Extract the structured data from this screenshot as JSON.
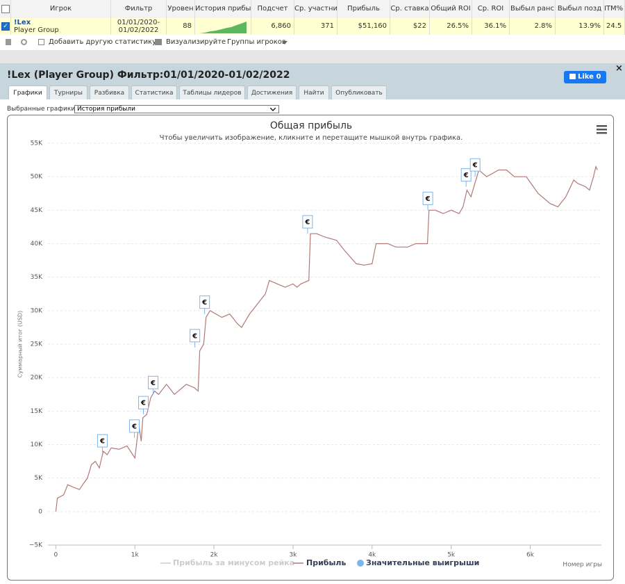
{
  "table": {
    "columns": [
      "Игрок",
      "Фильтр",
      "Уровен",
      "История прибы",
      "Подсчет",
      "Ср. участни",
      "Прибыль",
      "Ср. ставка",
      "Общий ROI",
      "Ср. ROI",
      "Выбыл ранс",
      "Выбыл позд",
      "ITM%"
    ],
    "row": {
      "player": "!Lex",
      "group": "Player Group",
      "filter": "01/01/2020-01/02/2022",
      "cells": [
        "88",
        "6,860",
        "371",
        "$51,160",
        "$22",
        "26.5%",
        "36.1%",
        "2.8%",
        "13.9%",
        "24.5"
      ]
    }
  },
  "toolbar": [
    "Добавить другую статистику",
    "Визуализируйте",
    "Группы игроков"
  ],
  "panel": {
    "title": "!Lex (Player Group) Фильтр:01/01/2020-01/02/2022",
    "like": "Like",
    "like_count": "0",
    "tabs": [
      "Графики",
      "Турниры",
      "Разбивка",
      "Статистика",
      "Таблицы лидеров",
      "Достижения",
      "Найти",
      "Опубликовать"
    ],
    "selector_label": "Выбранные графики:",
    "selector_value": "История прибыли"
  },
  "chart_data": {
    "type": "line",
    "title": "Общая прибыль",
    "subtitle": "Чтобы увеличить изображение, кликните и перетащите мышкой внутрь графика.",
    "y_label": "Суммарный итог (USD)",
    "x_label": "Номер игры",
    "flag_label": "€",
    "xlim": [
      -100,
      6900
    ],
    "ylim": [
      -5000,
      55000
    ],
    "xticks": [
      0,
      {
        "value": 1000,
        "label": "1k"
      },
      {
        "value": 2000,
        "label": "2k"
      },
      {
        "value": 3000,
        "label": "3k"
      },
      {
        "value": 4000,
        "label": "4k"
      },
      {
        "value": 5000,
        "label": "5k"
      },
      {
        "value": 6000,
        "label": "6k"
      }
    ],
    "yticks": [
      {
        "value": -5000,
        "label": "−5K"
      },
      0,
      {
        "value": 5000,
        "label": "5K"
      },
      {
        "value": 10000,
        "label": "10K"
      },
      {
        "value": 15000,
        "label": "15K"
      },
      {
        "value": 20000,
        "label": "20K"
      },
      {
        "value": 25000,
        "label": "25K"
      },
      {
        "value": 30000,
        "label": "30K"
      },
      {
        "value": 35000,
        "label": "35K"
      },
      {
        "value": 40000,
        "label": "40K"
      },
      {
        "value": 45000,
        "label": "45K"
      },
      {
        "value": 50000,
        "label": "50K"
      },
      {
        "value": 55000,
        "label": "55K"
      }
    ],
    "grid": true,
    "series": [
      {
        "name": "Прибыль за минусом рейка",
        "color": "#cccccc",
        "visible": false
      },
      {
        "name": "Прибыль",
        "color": "#b27878",
        "x": [
          0,
          20,
          100,
          150,
          250,
          300,
          350,
          400,
          450,
          500,
          550,
          600,
          650,
          700,
          800,
          900,
          1000,
          1050,
          1080,
          1100,
          1150,
          1200,
          1250,
          1300,
          1400,
          1500,
          1600,
          1650,
          1750,
          1800,
          1820,
          1870,
          1900,
          1950,
          2100,
          2200,
          2300,
          2350,
          2450,
          2550,
          2650,
          2700,
          2800,
          2900,
          3000,
          3050,
          3100,
          3200,
          3220,
          3300,
          3400,
          3550,
          3650,
          3800,
          3900,
          4000,
          4050,
          4200,
          4300,
          4450,
          4550,
          4700,
          4720,
          4800,
          4900,
          5000,
          5100,
          5150,
          5200,
          5250,
          5300,
          5350,
          5450,
          5600,
          5700,
          5800,
          5950,
          6100,
          6250,
          6350,
          6450,
          6550,
          6600,
          6700,
          6750,
          6800,
          6830,
          6850
        ],
        "values": [
          0,
          2000,
          2500,
          4000,
          3500,
          3300,
          4200,
          5000,
          7000,
          7500,
          6500,
          9000,
          8500,
          9500,
          9300,
          9800,
          8000,
          13000,
          10500,
          14000,
          14500,
          17000,
          18000,
          17500,
          19000,
          17500,
          18500,
          19000,
          18500,
          18000,
          24000,
          25000,
          29000,
          30000,
          29000,
          29500,
          28000,
          27500,
          29500,
          31000,
          32500,
          34500,
          34000,
          33500,
          34000,
          33500,
          34000,
          34500,
          41500,
          41500,
          41000,
          40500,
          39000,
          37000,
          36800,
          37000,
          40000,
          40000,
          39500,
          39500,
          40000,
          40000,
          45000,
          45000,
          44500,
          45000,
          44500,
          45500,
          48000,
          47000,
          49000,
          51000,
          50000,
          51000,
          51000,
          50000,
          50000,
          47500,
          46000,
          45500,
          47000,
          49500,
          49000,
          48500,
          48000,
          50000,
          51500,
          51000
        ]
      },
      {
        "name": "Значительные выигрыши",
        "color": "#7cb5ec",
        "x": [
          589,
          994,
          1108,
          1231,
          1759,
          1882,
          3184,
          4705,
          5189,
          5303
        ],
        "values": [
          8800,
          11000,
          14500,
          17500,
          24500,
          29500,
          41500,
          45000,
          48500,
          50000
        ]
      }
    ]
  }
}
